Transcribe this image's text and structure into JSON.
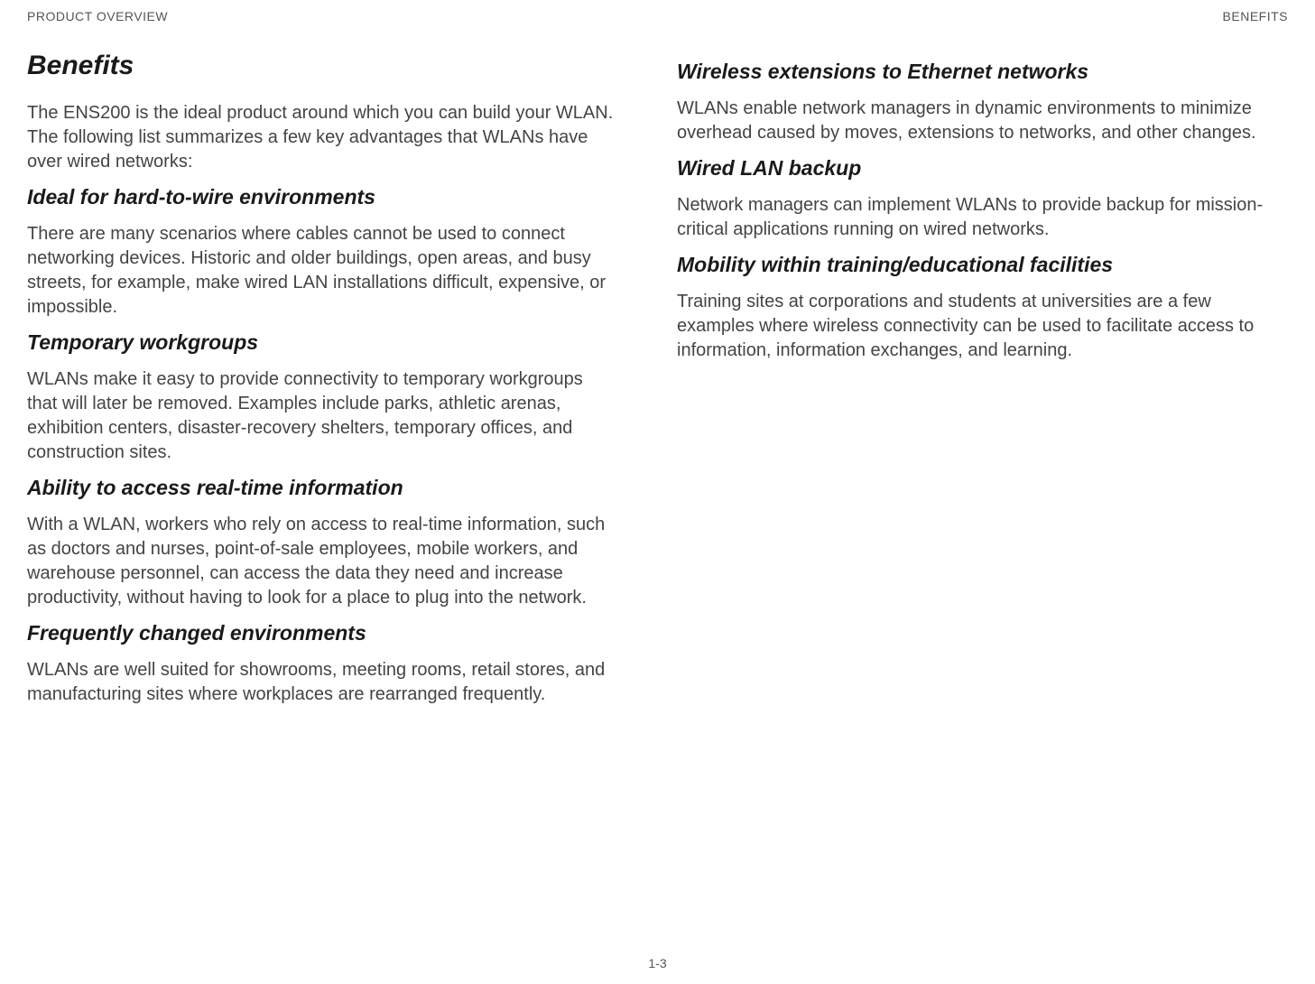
{
  "header": {
    "left": "PRODUCT OVERVIEW",
    "right": "BENEFITS"
  },
  "footer": {
    "page": "1-3"
  },
  "left_column": {
    "title": "Benefits",
    "intro": "The ENS200 is the ideal product around which you can build your WLAN. The following list summarizes a few key advantages that WLANs have over wired networks:",
    "sections": {
      "s1": {
        "heading": "Ideal for hard-to-wire environments",
        "body": "There are many scenarios where cables cannot be used to connect networking devices. Historic and older buildings, open areas, and busy streets, for example, make wired LAN installations difficult, expensive, or impossible."
      },
      "s2": {
        "heading": "Temporary workgroups",
        "body": "WLANs make it easy to provide connectivity to temporary workgroups that will later be removed. Examples include parks, athletic arenas, exhibition centers, disaster-recovery shelters, temporary offices, and construction sites."
      },
      "s3": {
        "heading": "Ability to access real-time information",
        "body": "With a WLAN, workers who rely on access to real-time information, such as doctors and nurses, point-of-sale employees, mobile workers, and warehouse personnel, can access the data they need and increase productivity, without having to look for a place to plug into the network."
      },
      "s4": {
        "heading": "Frequently changed environments",
        "body": "WLANs are well suited for showrooms, meeting rooms, retail stores, and manufacturing sites where workplaces are rearranged frequently."
      }
    }
  },
  "right_column": {
    "sections": {
      "r1": {
        "heading": "Wireless extensions to Ethernet networks",
        "body": "WLANs enable network managers in dynamic environments to minimize overhead caused by moves, extensions to networks, and other changes."
      },
      "r2": {
        "heading": "Wired LAN backup",
        "body": "Network managers can implement WLANs to provide backup for mission-critical applications running on wired networks."
      },
      "r3": {
        "heading": "Mobility within training/educational facilities",
        "body": "Training sites at corporations and students at universities are a few examples where wireless connectivity can be used to facilitate access to information, information exchanges, and learning."
      }
    }
  }
}
